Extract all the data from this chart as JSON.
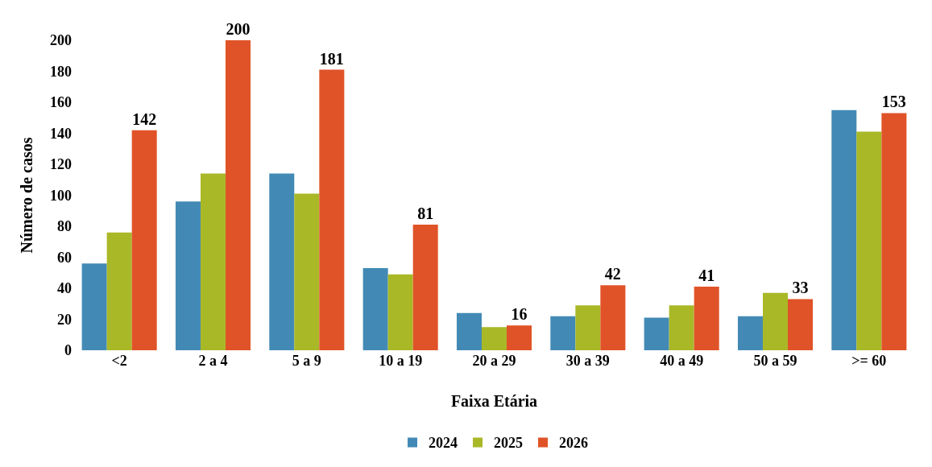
{
  "chart_data": {
    "type": "bar",
    "xlabel": "Faixa Etária",
    "ylabel": "Número de casos",
    "categories": [
      "<2",
      "2 a 4",
      "5 a 9",
      "10 a 19",
      "20 a 29",
      "30 a 39",
      "40 a 49",
      "50 a 59",
      ">= 60"
    ],
    "series": [
      {
        "name": "2024",
        "color": "#428ab5",
        "values": [
          56,
          96,
          114,
          53,
          24,
          22,
          21,
          22,
          155
        ]
      },
      {
        "name": "2025",
        "color": "#a9b827",
        "values": [
          76,
          114,
          101,
          49,
          15,
          29,
          29,
          37,
          141
        ]
      },
      {
        "name": "2026",
        "color": "#e05328",
        "values": [
          142,
          200,
          181,
          81,
          16,
          42,
          41,
          33,
          153
        ],
        "value_labels": [
          "142",
          "200",
          "181",
          "81",
          "16",
          "42",
          "41",
          "33",
          "153"
        ]
      }
    ],
    "ylim": [
      0,
      200
    ],
    "yticks": [
      0,
      20,
      40,
      60,
      80,
      100,
      120,
      140,
      160,
      180,
      200
    ],
    "grid": false,
    "legend": "bottom"
  }
}
